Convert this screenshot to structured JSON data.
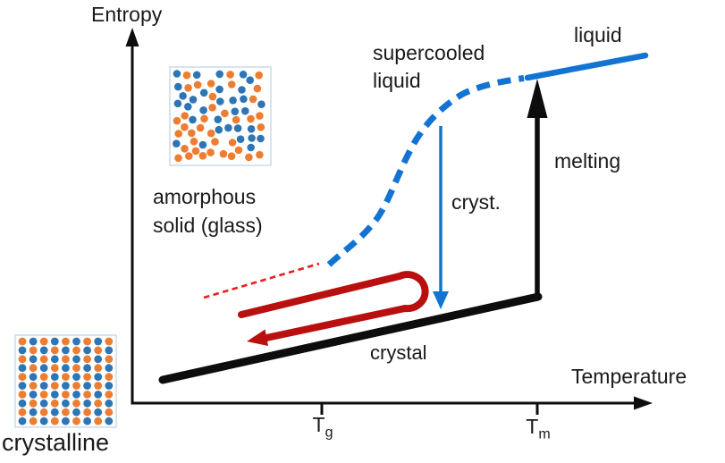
{
  "axes": {
    "y_label": "Entropy",
    "x_label": "Temperature",
    "tg_base": "T",
    "tg_sub": "g",
    "tm_base": "T",
    "tm_sub": "m"
  },
  "labels": {
    "supercooled_line1": "supercooled",
    "supercooled_line2": "liquid",
    "liquid": "liquid",
    "melting": "melting",
    "cryst": "cryst.",
    "crystal": "crystal",
    "amorphous_line1": "amorphous",
    "amorphous_line2": "solid (glass)",
    "crystalline": "crystalline"
  },
  "colors": {
    "line_blue": "#1273d2",
    "line_dark_red": "#b9100f",
    "line_bright_red": "#ee1c1c",
    "line_black": "#0d0d0d",
    "dot_blue": "#2e75b6",
    "dot_orange": "#ed7d31",
    "inset_border": "#ccdaeb"
  }
}
